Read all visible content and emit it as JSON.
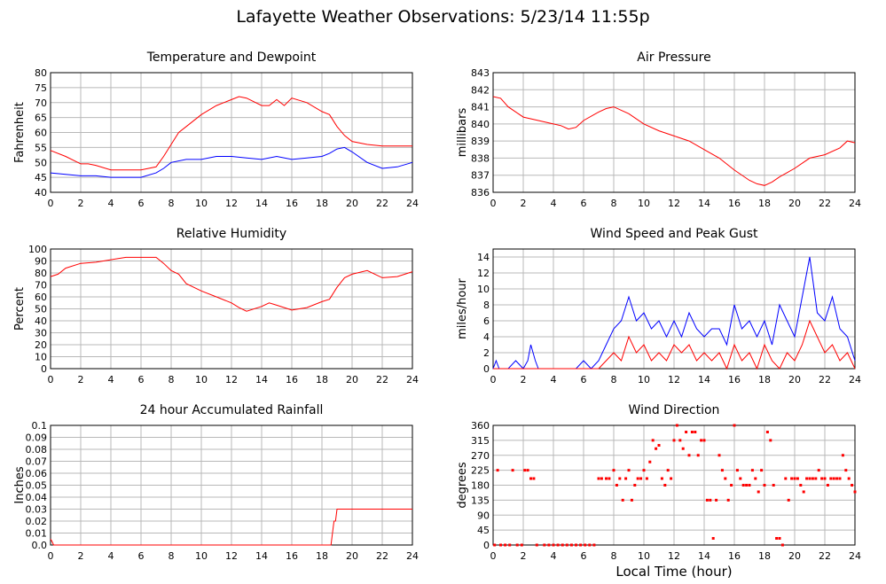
{
  "page": {
    "title": "Lafayette Weather Observations: 5/23/14 11:55p",
    "xaxis_label": "Local Time (hour)"
  },
  "chart_data": [
    {
      "type": "line",
      "title": "Temperature and Dewpoint",
      "ylabel": "Fahrenheit",
      "xlim": [
        0,
        24
      ],
      "ylim": [
        40,
        80
      ],
      "grid": true,
      "x_ticks": [
        "0",
        "2",
        "4",
        "6",
        "8",
        "10",
        "12",
        "14",
        "16",
        "18",
        "20",
        "22",
        "24"
      ],
      "y_ticks": [
        "40",
        "45",
        "50",
        "55",
        "60",
        "65",
        "70",
        "75",
        "80"
      ],
      "series": [
        {
          "color": "#ff0000",
          "x": [
            0,
            1,
            2,
            2.5,
            3,
            4,
            5,
            6,
            7,
            7.5,
            8,
            8.5,
            9,
            10,
            11,
            12,
            12.5,
            13,
            14,
            14.5,
            15,
            15.5,
            16,
            17,
            18,
            18.5,
            19,
            19.5,
            20,
            21,
            22,
            23,
            24
          ],
          "y": [
            54,
            52,
            49.5,
            49.5,
            49,
            47.5,
            47.5,
            47.5,
            48.5,
            52,
            56,
            60,
            62,
            66,
            69,
            71,
            72,
            71.5,
            69,
            69,
            71,
            69,
            71.5,
            70,
            67,
            66,
            62,
            59,
            57,
            56,
            55.5,
            55.5,
            55.5
          ]
        },
        {
          "color": "#0000ff",
          "x": [
            0,
            1,
            2,
            3,
            4,
            5,
            6,
            7,
            7.5,
            8,
            9,
            10,
            11,
            12,
            13,
            14,
            15,
            16,
            17,
            18,
            18.5,
            19,
            19.5,
            20,
            21,
            22,
            23,
            24
          ],
          "y": [
            46.5,
            46,
            45.5,
            45.5,
            45,
            45,
            45,
            46.5,
            48,
            50,
            51,
            51,
            52,
            52,
            51.5,
            51,
            52,
            51,
            51.5,
            52,
            53,
            54.5,
            55,
            53.5,
            50,
            48,
            48.5,
            50
          ]
        }
      ]
    },
    {
      "type": "line",
      "title": "Air Pressure",
      "ylabel": "millibars",
      "xlim": [
        0,
        24
      ],
      "ylim": [
        836,
        843
      ],
      "grid": true,
      "x_ticks": [
        "0",
        "2",
        "4",
        "6",
        "8",
        "10",
        "12",
        "14",
        "16",
        "18",
        "20",
        "22",
        "24"
      ],
      "y_ticks": [
        "836",
        "837",
        "838",
        "839",
        "840",
        "841",
        "842",
        "843"
      ],
      "series": [
        {
          "color": "#ff0000",
          "x": [
            0,
            0.5,
            1,
            2,
            3,
            4,
            4.5,
            5,
            5.5,
            6,
            7,
            7.5,
            8,
            9,
            10,
            11,
            12,
            13,
            14,
            15,
            16,
            17,
            17.5,
            18,
            18.5,
            19,
            20,
            21,
            22,
            23,
            23.5,
            24
          ],
          "y": [
            841.6,
            841.5,
            841,
            840.4,
            840.2,
            840,
            839.9,
            839.7,
            839.8,
            840.2,
            840.7,
            840.9,
            841,
            840.6,
            840,
            839.6,
            839.3,
            839,
            838.5,
            838,
            837.3,
            836.7,
            836.5,
            836.4,
            836.6,
            836.9,
            837.4,
            838,
            838.2,
            838.6,
            839,
            838.9
          ]
        }
      ]
    },
    {
      "type": "line",
      "title": "Relative Humidity",
      "ylabel": "Percent",
      "xlim": [
        0,
        24
      ],
      "ylim": [
        0,
        100
      ],
      "grid": true,
      "x_ticks": [
        "0",
        "2",
        "4",
        "6",
        "8",
        "10",
        "12",
        "14",
        "16",
        "18",
        "20",
        "22",
        "24"
      ],
      "y_ticks": [
        "0",
        "10",
        "20",
        "30",
        "40",
        "50",
        "60",
        "70",
        "80",
        "90",
        "100"
      ],
      "series": [
        {
          "color": "#ff0000",
          "x": [
            0,
            0.5,
            1,
            2,
            3,
            4,
            5,
            6,
            7,
            7.5,
            8,
            8.5,
            9,
            10,
            11,
            12,
            12.5,
            13,
            14,
            14.5,
            15,
            16,
            17,
            18,
            18.5,
            19,
            19.5,
            20,
            21,
            22,
            23,
            24
          ],
          "y": [
            77,
            79,
            84,
            88,
            89,
            91,
            93,
            93,
            93,
            88,
            82,
            79,
            71,
            65,
            60,
            55,
            51,
            48,
            52,
            55,
            53,
            49,
            51,
            56,
            58,
            68,
            76,
            79,
            82,
            76,
            77,
            81
          ]
        }
      ]
    },
    {
      "type": "line",
      "title": "Wind Speed and Peak Gust",
      "ylabel": "miles/hour",
      "xlim": [
        0,
        24
      ],
      "ylim": [
        0,
        15
      ],
      "grid": true,
      "x_ticks": [
        "0",
        "2",
        "4",
        "6",
        "8",
        "10",
        "12",
        "14",
        "16",
        "18",
        "20",
        "22",
        "24"
      ],
      "y_ticks": [
        "0",
        "2",
        "4",
        "6",
        "8",
        "10",
        "12",
        "14"
      ],
      "series": [
        {
          "color": "#0000ff",
          "x": [
            0,
            0.2,
            0.4,
            1,
            1.5,
            2,
            2.3,
            2.5,
            2.8,
            3,
            4,
            5,
            5.5,
            6,
            6.5,
            7,
            7.5,
            8,
            8.5,
            9,
            9.5,
            10,
            10.5,
            11,
            11.5,
            12,
            12.5,
            13,
            13.5,
            14,
            14.5,
            15,
            15.5,
            16,
            16.5,
            17,
            17.5,
            18,
            18.5,
            19,
            19.5,
            20,
            20.5,
            21,
            21.5,
            22,
            22.5,
            23,
            23.5,
            24
          ],
          "y": [
            0,
            1,
            0,
            0,
            1,
            0,
            1,
            3,
            1,
            0,
            0,
            0,
            0,
            1,
            0,
            1,
            3,
            5,
            6,
            9,
            6,
            7,
            5,
            6,
            4,
            6,
            4,
            7,
            5,
            4,
            5,
            5,
            3,
            8,
            5,
            6,
            4,
            6,
            3,
            8,
            6,
            4,
            9,
            14,
            7,
            6,
            9,
            5,
            4,
            1
          ]
        },
        {
          "color": "#ff0000",
          "x": [
            0,
            6,
            7,
            7.5,
            8,
            8.5,
            9,
            9.5,
            10,
            10.5,
            11,
            11.5,
            12,
            12.5,
            13,
            13.5,
            14,
            14.5,
            15,
            15.5,
            16,
            16.5,
            17,
            17.5,
            18,
            18.5,
            19,
            19.5,
            20,
            20.5,
            21,
            21.5,
            22,
            22.5,
            23,
            23.5,
            24
          ],
          "y": [
            0,
            0,
            0,
            1,
            2,
            1,
            4,
            2,
            3,
            1,
            2,
            1,
            3,
            2,
            3,
            1,
            2,
            1,
            2,
            0,
            3,
            1,
            2,
            0,
            3,
            1,
            0,
            2,
            1,
            3,
            6,
            4,
            2,
            3,
            1,
            2,
            0
          ]
        }
      ]
    },
    {
      "type": "line",
      "title": "24 hour Accumulated Rainfall",
      "ylabel": "Inches",
      "xlim": [
        0,
        24
      ],
      "ylim": [
        0,
        0.1
      ],
      "grid": true,
      "x_ticks": [
        "0",
        "2",
        "4",
        "6",
        "8",
        "10",
        "12",
        "14",
        "16",
        "18",
        "20",
        "22",
        "24"
      ],
      "y_ticks": [
        "0.0",
        "0.01",
        "0.02",
        "0.03",
        "0.04",
        "0.05",
        "0.06",
        "0.07",
        "0.08",
        "0.09",
        "0.1"
      ],
      "series": [
        {
          "color": "#ff0000",
          "x": [
            0,
            0.1,
            0.2,
            18.6,
            18.7,
            18.8,
            18.9,
            19,
            24
          ],
          "y": [
            0.005,
            0.003,
            0,
            0,
            0.01,
            0.02,
            0.02,
            0.03,
            0.03
          ]
        }
      ]
    },
    {
      "type": "scatter",
      "title": "Wind Direction",
      "ylabel": "degrees",
      "xlim": [
        0,
        24
      ],
      "ylim": [
        0,
        360
      ],
      "grid": true,
      "x_ticks": [
        "0",
        "2",
        "4",
        "6",
        "8",
        "10",
        "12",
        "14",
        "16",
        "18",
        "20",
        "22",
        "24"
      ],
      "y_ticks": [
        "0",
        "45",
        "90",
        "135",
        "180",
        "225",
        "270",
        "315",
        "360"
      ],
      "series": [
        {
          "color": "#ff0000",
          "x": [
            0.1,
            0.3,
            0.5,
            0.8,
            1.1,
            1.3,
            1.6,
            1.9,
            2.1,
            2.3,
            2.5,
            2.7,
            2.9,
            3.4,
            3.7,
            4.0,
            4.3,
            4.6,
            4.9,
            5.2,
            5.5,
            5.8,
            6.1,
            6.4,
            6.7,
            7.0,
            7.2,
            7.5,
            7.7,
            8.0,
            8.2,
            8.4,
            8.6,
            8.8,
            9.0,
            9.2,
            9.4,
            9.6,
            9.8,
            10.0,
            10.2,
            10.4,
            10.6,
            10.8,
            11.0,
            11.2,
            11.4,
            11.6,
            11.8,
            12.0,
            12.2,
            12.4,
            12.6,
            12.8,
            13.0,
            13.2,
            13.4,
            13.6,
            13.8,
            14.0,
            14.2,
            14.4,
            14.6,
            14.8,
            15.0,
            15.2,
            15.4,
            15.6,
            15.8,
            16.0,
            16.2,
            16.4,
            16.6,
            16.8,
            17.0,
            17.2,
            17.4,
            17.6,
            17.8,
            18.0,
            18.2,
            18.4,
            18.6,
            18.8,
            19.0,
            19.2,
            19.4,
            19.6,
            19.8,
            20.0,
            20.2,
            20.4,
            20.6,
            20.8,
            21.0,
            21.2,
            21.4,
            21.6,
            21.8,
            22.0,
            22.2,
            22.4,
            22.6,
            22.8,
            23.0,
            23.2,
            23.4,
            23.6,
            23.8,
            24.0
          ],
          "y": [
            0,
            225,
            0,
            0,
            0,
            225,
            0,
            0,
            225,
            225,
            200,
            200,
            0,
            0,
            0,
            0,
            0,
            0,
            0,
            0,
            0,
            0,
            0,
            0,
            0,
            200,
            200,
            200,
            200,
            225,
            180,
            200,
            135,
            200,
            225,
            135,
            180,
            200,
            200,
            225,
            200,
            250,
            315,
            290,
            300,
            200,
            180,
            225,
            200,
            315,
            360,
            315,
            290,
            340,
            270,
            340,
            340,
            270,
            315,
            315,
            135,
            135,
            20,
            135,
            270,
            225,
            200,
            135,
            180,
            360,
            225,
            200,
            180,
            180,
            180,
            225,
            200,
            160,
            225,
            180,
            340,
            315,
            180,
            20,
            20,
            0,
            200,
            135,
            200,
            200,
            200,
            180,
            160,
            200,
            200,
            200,
            200,
            225,
            200,
            200,
            180,
            200,
            200,
            200,
            200,
            270,
            225,
            200,
            180,
            160
          ]
        }
      ]
    }
  ]
}
